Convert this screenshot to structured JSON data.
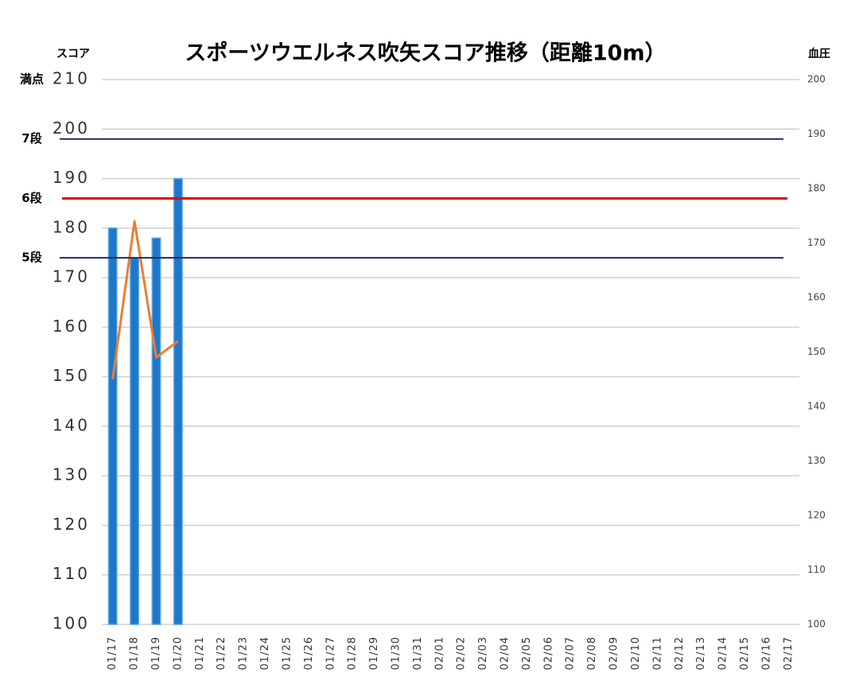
{
  "chart_data": {
    "type": "bar_line",
    "title": "スポーツウエルネス吹矢スコア推移（距離10m）",
    "y_label": "スコア",
    "y2_label": "血圧",
    "categories": [
      "01/17",
      "01/18",
      "01/19",
      "01/20",
      "01/21",
      "01/22",
      "01/23",
      "01/24",
      "01/25",
      "01/26",
      "01/27",
      "01/28",
      "01/29",
      "01/30",
      "01/31",
      "02/01",
      "02/02",
      "02/03",
      "02/04",
      "02/05",
      "02/06",
      "02/07",
      "02/08",
      "02/09",
      "02/10",
      "02/11",
      "02/12",
      "02/13",
      "02/14",
      "02/15",
      "02/16",
      "02/17"
    ],
    "series": [
      {
        "name": "スコア",
        "type": "bar",
        "color": "#1f77c8",
        "values": [
          180,
          174,
          178,
          190,
          null,
          null,
          null,
          null,
          null,
          null,
          null,
          null,
          null,
          null,
          null,
          null,
          null,
          null,
          null,
          null,
          null,
          null,
          null,
          null,
          null,
          null,
          null,
          null,
          null,
          null,
          null,
          null
        ]
      },
      {
        "name": "血圧",
        "type": "line",
        "axis": "y2",
        "color": "#ed7d31",
        "values": [
          145,
          174,
          149,
          152,
          null,
          null,
          null,
          null,
          null,
          null,
          null,
          null,
          null,
          null,
          null,
          null,
          null,
          null,
          null,
          null,
          null,
          null,
          null,
          null,
          null,
          null,
          null,
          null,
          null,
          null,
          null,
          null
        ]
      }
    ],
    "ylim": [
      100,
      210
    ],
    "yticks": [
      100,
      110,
      120,
      130,
      140,
      150,
      160,
      170,
      180,
      190,
      200,
      210
    ],
    "y2lim": [
      100,
      200
    ],
    "y2ticks": [
      100,
      110,
      120,
      130,
      140,
      150,
      160,
      170,
      180,
      190,
      200
    ],
    "grid": true,
    "max_mark": {
      "label": "満点",
      "value": 210,
      "color": "#e00000"
    },
    "reference_lines": [
      {
        "label": "7段",
        "value": 198,
        "color": "#1f2a5c"
      },
      {
        "label": "6段",
        "value": 186,
        "color": "#e00000"
      },
      {
        "label": "5段",
        "value": 174,
        "color": "#1f2a5c"
      }
    ]
  }
}
